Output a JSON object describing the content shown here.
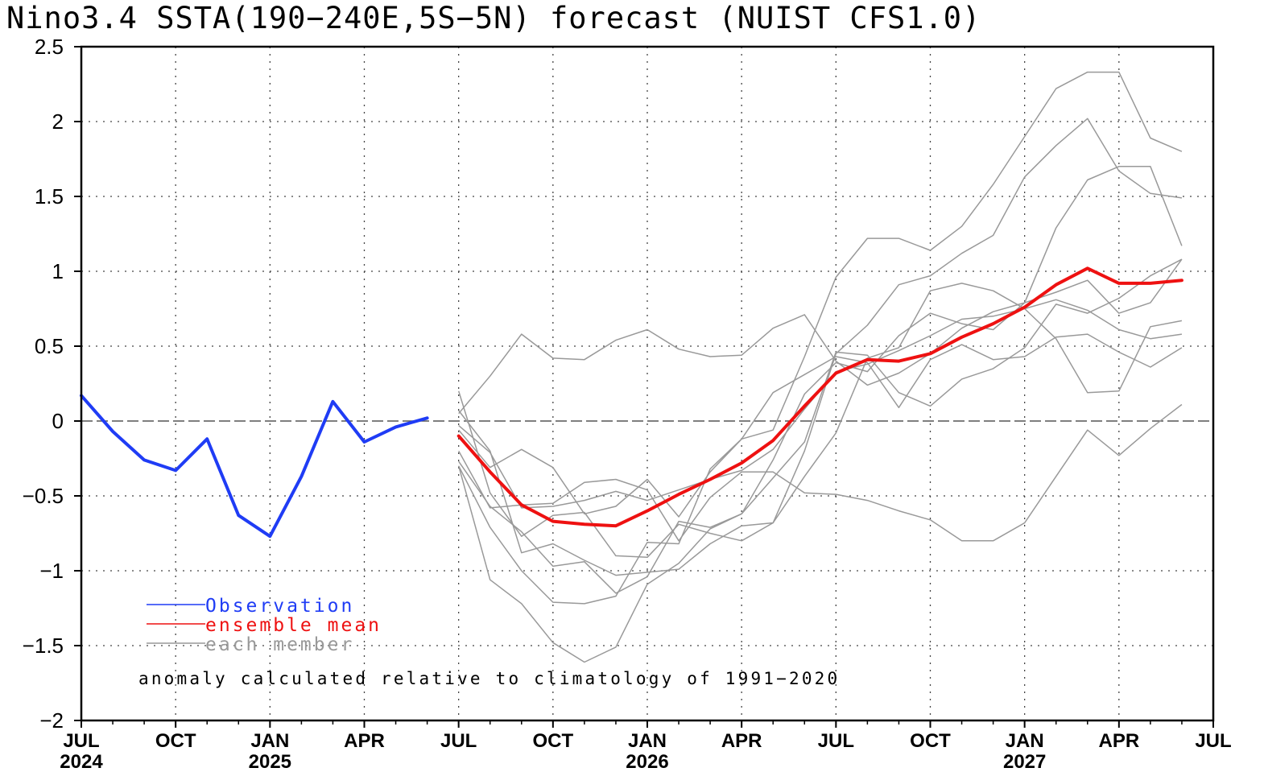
{
  "chart_data": {
    "type": "line",
    "title": "Nino3.4 SSTA(190−240E,5S−5N) forecast (NUIST CFS1.0)",
    "ylim": [
      -2,
      2.5
    ],
    "yticks": [
      "2.5",
      "2",
      "1.5",
      "1",
      "0.5",
      "0",
      "−0.5",
      "−1",
      "−1.5",
      "−2"
    ],
    "ytick_values": [
      2.5,
      2,
      1.5,
      1,
      0.5,
      0,
      -0.5,
      -1,
      -1.5,
      -2
    ],
    "x_months": [
      "2024-07",
      "2024-08",
      "2024-09",
      "2024-10",
      "2024-11",
      "2024-12",
      "2025-01",
      "2025-02",
      "2025-03",
      "2025-04",
      "2025-05",
      "2025-06",
      "2025-07",
      "2025-08",
      "2025-09",
      "2025-10",
      "2025-11",
      "2025-12",
      "2026-01",
      "2026-02",
      "2026-03",
      "2026-04",
      "2026-05",
      "2026-06",
      "2026-07",
      "2026-08",
      "2026-09",
      "2026-10",
      "2026-11",
      "2026-12",
      "2027-01",
      "2027-02",
      "2027-03",
      "2027-04",
      "2027-05",
      "2027-06",
      "2027-07"
    ],
    "xticks": [
      {
        "month": "2024-07",
        "label": "JUL"
      },
      {
        "month": "2024-10",
        "label": "OCT"
      },
      {
        "month": "2025-01",
        "label": "JAN"
      },
      {
        "month": "2025-04",
        "label": "APR"
      },
      {
        "month": "2025-07",
        "label": "JUL"
      },
      {
        "month": "2025-10",
        "label": "OCT"
      },
      {
        "month": "2026-01",
        "label": "JAN"
      },
      {
        "month": "2026-04",
        "label": "APR"
      },
      {
        "month": "2026-07",
        "label": "JUL"
      },
      {
        "month": "2026-10",
        "label": "OCT"
      },
      {
        "month": "2027-01",
        "label": "JAN"
      },
      {
        "month": "2027-04",
        "label": "APR"
      },
      {
        "month": "2027-07",
        "label": "JUL"
      }
    ],
    "year_labels": [
      {
        "month": "2024-07",
        "label": "2024"
      },
      {
        "month": "2025-01",
        "label": "2025"
      },
      {
        "month": "2026-01",
        "label": "2026"
      },
      {
        "month": "2027-01",
        "label": "2027"
      }
    ],
    "series": [
      {
        "name": "Observation",
        "role": "observation",
        "color": "#1f3cf5",
        "start": "2024-07",
        "values": [
          0.17,
          -0.07,
          -0.26,
          -0.33,
          -0.12,
          -0.63,
          -0.77,
          -0.37,
          0.13,
          -0.14,
          -0.04,
          0.02
        ]
      },
      {
        "name": "ensemble mean",
        "role": "mean",
        "color": "#ee1111",
        "start": "2025-07",
        "values": [
          -0.1,
          -0.34,
          -0.56,
          -0.67,
          -0.69,
          -0.7,
          -0.6,
          -0.49,
          -0.39,
          -0.28,
          -0.13,
          0.1,
          0.32,
          0.41,
          0.4,
          0.45,
          0.56,
          0.65,
          0.76,
          0.91,
          1.02,
          0.92,
          0.92,
          0.94
        ]
      }
    ],
    "members": [
      {
        "start": "2025-07",
        "values": [
          0.07,
          -0.2,
          -0.88,
          -0.82,
          -0.93,
          -1.03,
          -1.01,
          -0.99,
          -0.82,
          -0.7,
          -0.68,
          -0.37,
          -0.08,
          0.42,
          0.49,
          0.87,
          0.92,
          0.87,
          0.75,
          0.55,
          0.19,
          0.2,
          0.63,
          0.67
        ]
      },
      {
        "start": "2025-07",
        "values": [
          0.2,
          -0.48,
          -0.77,
          -0.63,
          -0.61,
          -0.9,
          -0.91,
          -0.69,
          -0.75,
          -0.8,
          -0.68,
          -0.2,
          0.45,
          0.64,
          0.91,
          0.97,
          1.12,
          1.24,
          1.63,
          1.84,
          2.02,
          1.67,
          1.52,
          1.49
        ]
      },
      {
        "start": "2025-07",
        "values": [
          0.05,
          0.3,
          0.58,
          0.42,
          0.41,
          0.54,
          0.61,
          0.48,
          0.43,
          0.44,
          0.62,
          0.71,
          0.4,
          0.24,
          0.32,
          0.45,
          0.62,
          0.73,
          0.79,
          0.86,
          0.94,
          0.72,
          0.79,
          1.08
        ]
      },
      {
        "start": "2025-07",
        "values": [
          -0.2,
          -0.58,
          -0.56,
          -0.55,
          -0.41,
          -0.39,
          -0.46,
          -0.8,
          -0.51,
          -0.34,
          -0.34,
          -0.48,
          -0.49,
          -0.53,
          -0.6,
          -0.66,
          -0.8,
          -0.8,
          -0.68,
          -0.37,
          -0.06,
          -0.23,
          -0.05,
          0.11
        ]
      },
      {
        "start": "2025-07",
        "values": [
          -0.3,
          -1.06,
          -1.22,
          -1.48,
          -1.61,
          -1.51,
          -1.09,
          -0.95,
          -0.72,
          -0.62,
          -0.38,
          -0.14,
          0.46,
          0.44,
          0.19,
          0.1,
          0.28,
          0.35,
          0.49,
          0.78,
          0.72,
          0.82,
          0.97,
          1.08
        ]
      },
      {
        "start": "2025-07",
        "values": [
          -0.06,
          -0.31,
          -0.19,
          -0.31,
          -0.62,
          -0.57,
          -0.39,
          -0.64,
          -0.34,
          -0.12,
          -0.06,
          0.43,
          0.96,
          1.22,
          1.22,
          1.14,
          1.3,
          1.58,
          1.9,
          2.22,
          2.33,
          2.33,
          1.89,
          1.8
        ]
      },
      {
        "start": "2025-07",
        "values": [
          -0.27,
          -0.57,
          -0.74,
          -0.97,
          -0.94,
          -1.15,
          -1.04,
          -0.67,
          -0.71,
          -0.62,
          -0.26,
          0.18,
          0.39,
          0.33,
          0.57,
          0.72,
          0.65,
          0.61,
          0.79,
          1.29,
          1.61,
          1.7,
          1.7,
          1.17
        ]
      },
      {
        "start": "2025-07",
        "values": [
          -0.3,
          -0.71,
          -1.0,
          -1.21,
          -1.22,
          -1.17,
          -0.81,
          -0.82,
          -0.32,
          -0.12,
          0.19,
          0.31,
          0.43,
          0.39,
          0.09,
          0.41,
          0.51,
          0.41,
          0.43,
          0.56,
          0.58,
          0.46,
          0.36,
          0.49
        ]
      },
      {
        "start": "2025-07",
        "values": [
          -0.03,
          -0.21,
          -0.58,
          -0.57,
          -0.53,
          -0.47,
          -0.53,
          -0.46,
          -0.39,
          -0.33,
          -0.19,
          0.08,
          0.33,
          0.38,
          0.47,
          0.57,
          0.68,
          0.7,
          0.75,
          0.81,
          0.74,
          0.61,
          0.55,
          0.58
        ]
      }
    ],
    "member_color": "#999999",
    "zero_line": true,
    "grid": true,
    "legend": {
      "placement": "bottom-left",
      "items": [
        {
          "label": "Observation",
          "color": "#1f3cf5"
        },
        {
          "label": "ensemble mean",
          "color": "#ee1111"
        },
        {
          "label": "each member",
          "color": "#999999"
        }
      ]
    },
    "annotation": "anomaly calculated relative to climatology of 1991−2020"
  }
}
